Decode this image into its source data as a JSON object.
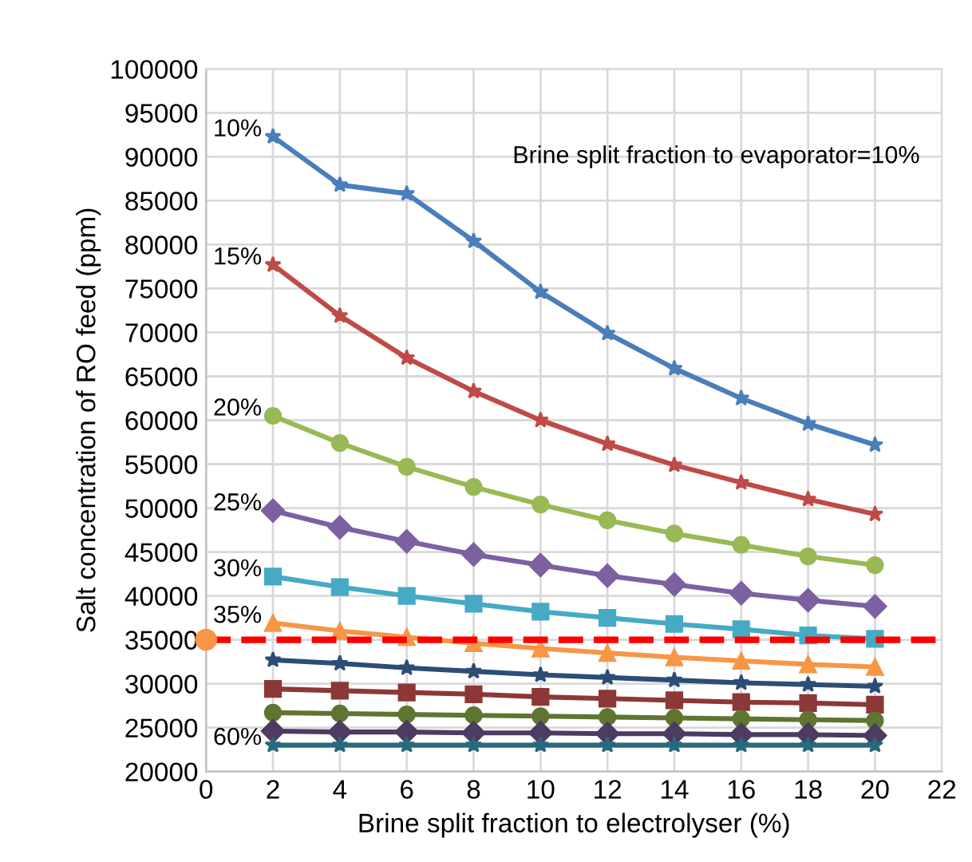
{
  "chart_data": {
    "type": "line",
    "xlabel": "Brine split fraction to electrolyser (%)",
    "ylabel": "Salt concentration of RO feed (ppm)",
    "x": [
      2,
      4,
      6,
      8,
      10,
      12,
      14,
      16,
      18,
      20
    ],
    "series": [
      {
        "name": "10%",
        "color": "#4a7ebb",
        "marker": "star",
        "values": [
          92300,
          86800,
          85800,
          80400,
          74600,
          69900,
          65900,
          62500,
          59600,
          57200
        ]
      },
      {
        "name": "15%",
        "color": "#be4b48",
        "marker": "star",
        "values": [
          77700,
          71900,
          67100,
          63300,
          60000,
          57300,
          54900,
          52900,
          51000,
          49300
        ]
      },
      {
        "name": "20%",
        "color": "#98b954",
        "marker": "circle",
        "values": [
          60500,
          57400,
          54700,
          52400,
          50400,
          48600,
          47100,
          45800,
          44500,
          43500
        ]
      },
      {
        "name": "25%",
        "color": "#7d60a0",
        "marker": "diamond",
        "values": [
          49700,
          47800,
          46200,
          44700,
          43500,
          42300,
          41300,
          40300,
          39500,
          38800
        ]
      },
      {
        "name": "30%",
        "color": "#46aac5",
        "marker": "square",
        "values": [
          42200,
          41000,
          40000,
          39100,
          38200,
          37500,
          36800,
          36200,
          35500,
          35100
        ]
      },
      {
        "name": "35%",
        "color": "#f79646",
        "marker": "triangle",
        "values": [
          36900,
          36000,
          35300,
          34600,
          34000,
          33500,
          33000,
          32600,
          32200,
          31900
        ]
      },
      {
        "color": "#2c4d75",
        "marker": "star",
        "values": [
          32700,
          32300,
          31800,
          31400,
          31000,
          30700,
          30400,
          30100,
          29900,
          29700
        ]
      },
      {
        "color": "#8c3836",
        "marker": "square",
        "values": [
          29400,
          29200,
          29000,
          28800,
          28500,
          28300,
          28100,
          27900,
          27800,
          27600
        ]
      },
      {
        "color": "#5f7530",
        "marker": "circle",
        "values": [
          26700,
          26600,
          26500,
          26400,
          26300,
          26200,
          26100,
          26000,
          25900,
          25800
        ]
      },
      {
        "color": "#4d3b62",
        "marker": "diamond",
        "values": [
          24600,
          24500,
          24500,
          24400,
          24400,
          24300,
          24300,
          24200,
          24200,
          24100
        ]
      },
      {
        "name": "60%",
        "color": "#276a7c",
        "marker": "star",
        "values": [
          23000,
          23000,
          23000,
          23000,
          23000,
          23000,
          23000,
          23000,
          23000,
          23000
        ]
      },
      {
        "type": "scatter",
        "x": [
          0
        ],
        "color": "#f79646",
        "marker": "circle",
        "values": [
          35000
        ]
      }
    ],
    "ref_lines": [
      {
        "axis": "y",
        "value": 35000,
        "color": "#ff0000",
        "line_style": "dashed"
      }
    ],
    "annotations": [
      "Brine split fraction to evaporator=10%"
    ],
    "xlim": [
      0,
      22
    ],
    "xticks": [
      0,
      2,
      4,
      6,
      8,
      10,
      12,
      14,
      16,
      18,
      20,
      22
    ],
    "ylim": [
      20000,
      100000
    ],
    "yticks": [
      20000,
      25000,
      30000,
      35000,
      40000,
      45000,
      50000,
      55000,
      60000,
      65000,
      70000,
      75000,
      80000,
      85000,
      90000,
      95000,
      100000
    ],
    "grid": true
  }
}
